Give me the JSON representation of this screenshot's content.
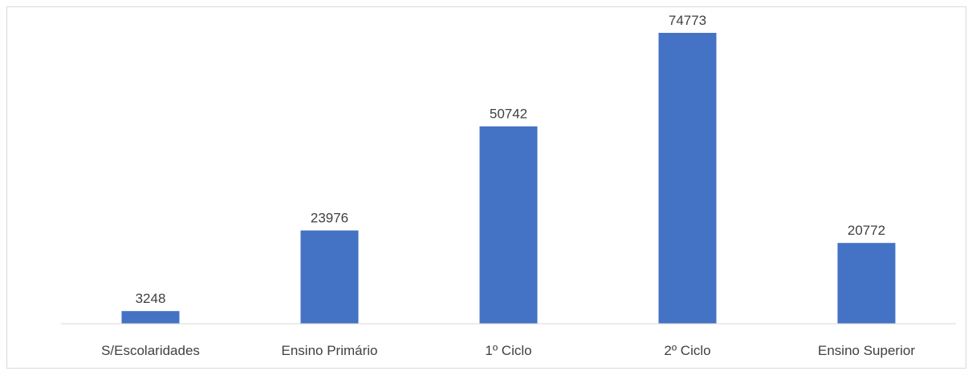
{
  "chart_data": {
    "type": "bar",
    "categories": [
      "S/Escolaridades",
      "Ensino Primário",
      "1º Ciclo",
      "2º Ciclo",
      "Ensino Superior"
    ],
    "values": [
      3248,
      23976,
      50742,
      74773,
      20772
    ],
    "data_labels": [
      "3248",
      "23976",
      "50742",
      "74773",
      "20772"
    ],
    "ylim": [
      0,
      78000
    ],
    "grid": false,
    "legend": "none",
    "bar_color": "#4472c4",
    "text_color": "#404040",
    "axis_color": "#d9d9d9"
  }
}
